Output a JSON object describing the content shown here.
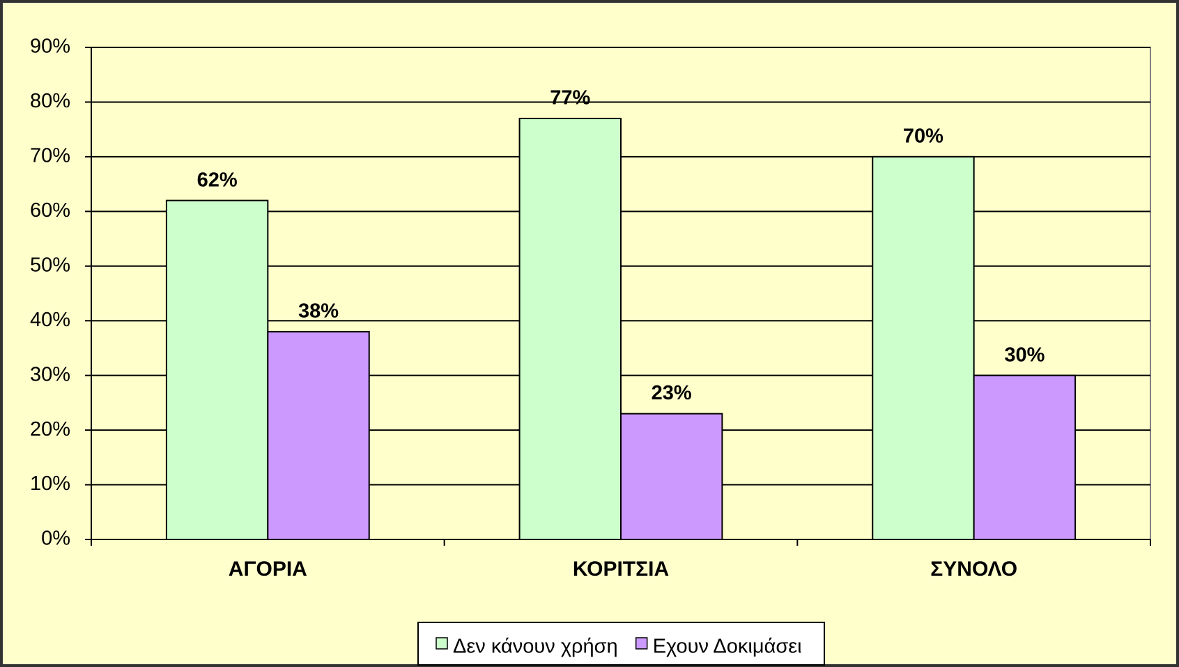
{
  "chart_data": {
    "type": "bar",
    "categories": [
      "ΑΓΟΡΙΑ",
      "ΚΟΡΙΤΣΙΑ",
      "ΣΥΝΟΛΟ"
    ],
    "series": [
      {
        "name": "Δεν κάνουν χρήση",
        "color": "#ccffcc",
        "values": [
          62,
          77,
          70
        ],
        "value_labels": [
          "62%",
          "77%",
          "70%"
        ]
      },
      {
        "name": "Εχουν Δοκιμάσει",
        "color": "#cc99ff",
        "values": [
          38,
          23,
          30
        ],
        "value_labels": [
          "38%",
          "23%",
          "30%"
        ]
      }
    ],
    "ylim": [
      0,
      90
    ],
    "yticks": [
      {
        "value": 0,
        "label": "0%"
      },
      {
        "value": 10,
        "label": "10%"
      },
      {
        "value": 20,
        "label": "20%"
      },
      {
        "value": 30,
        "label": "30%"
      },
      {
        "value": 40,
        "label": "40%"
      },
      {
        "value": 50,
        "label": "50%"
      },
      {
        "value": 60,
        "label": "60%"
      },
      {
        "value": 70,
        "label": "70%"
      },
      {
        "value": 80,
        "label": "80%"
      },
      {
        "value": 90,
        "label": "90%"
      }
    ],
    "grid": true,
    "legend": "bottom"
  }
}
